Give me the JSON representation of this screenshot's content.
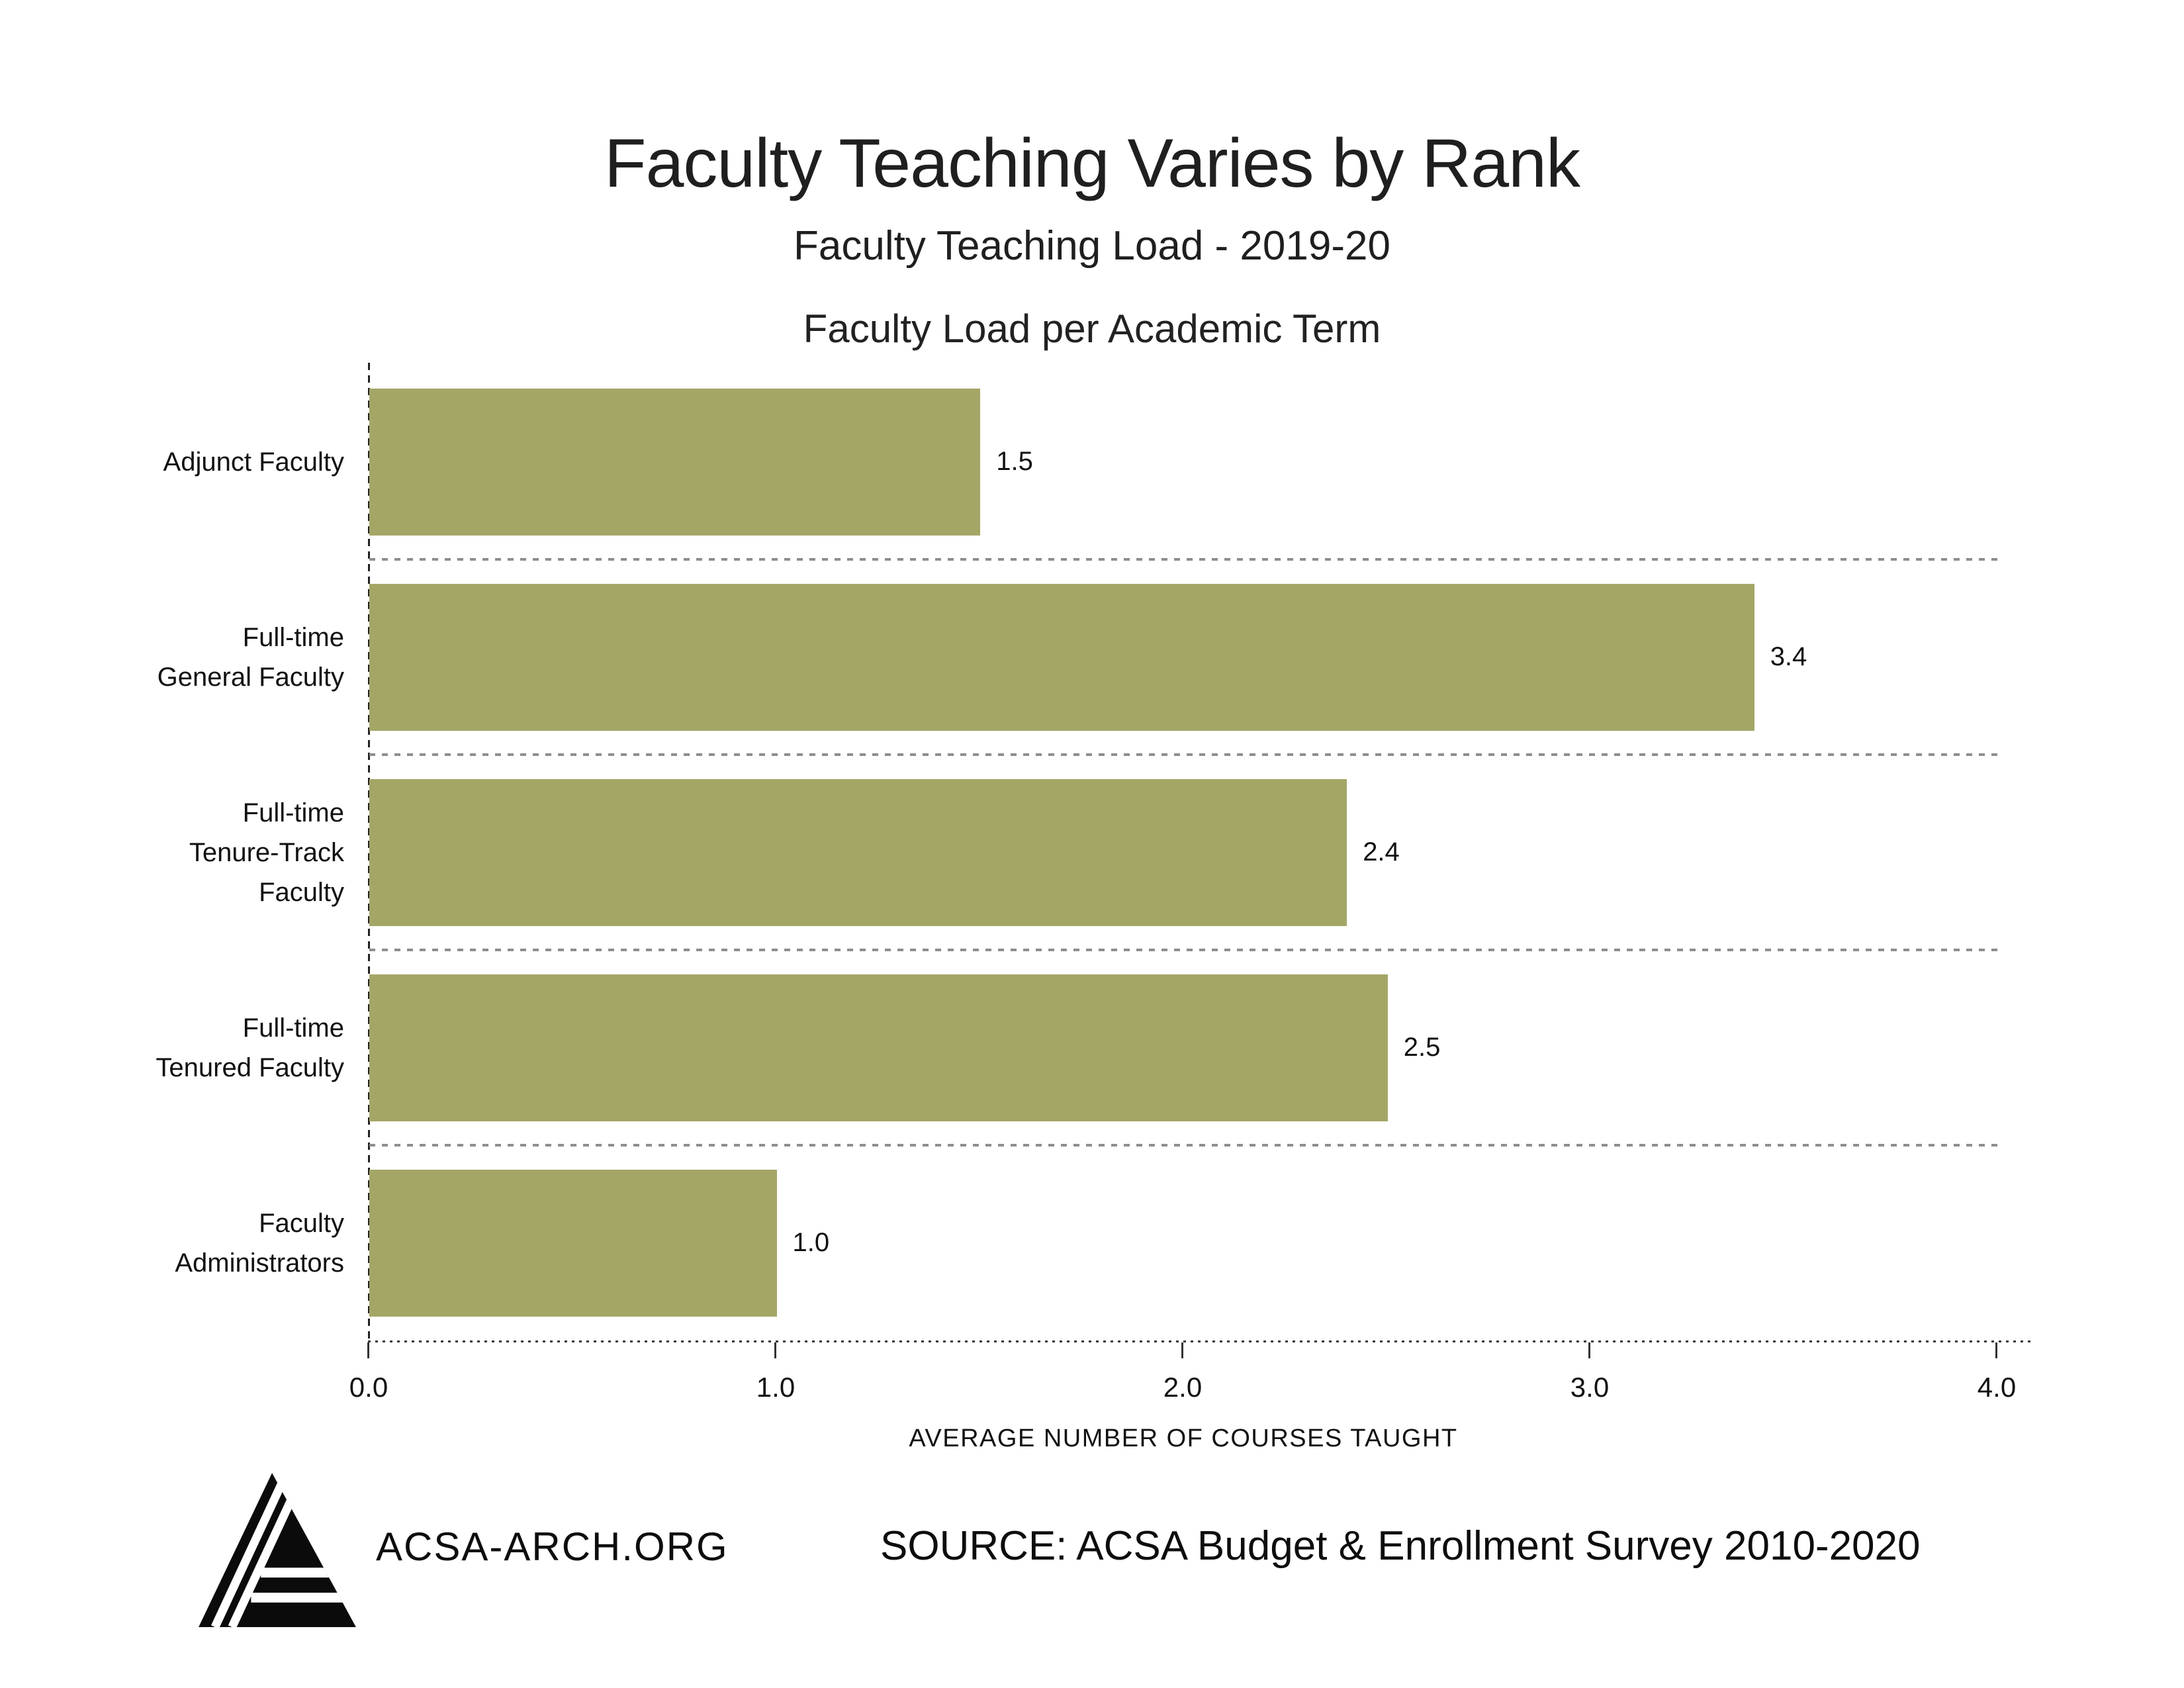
{
  "header": {
    "title": "Faculty Teaching Varies by Rank",
    "subtitle": "Faculty Teaching Load - 2019-20"
  },
  "chart_data": {
    "type": "bar",
    "orientation": "horizontal",
    "title": "Faculty Load per Academic Term",
    "categories": [
      "Adjunct Faculty",
      "Full-time General Faculty",
      "Full-time Tenure-Track Faculty",
      "Full-time Tenured Faculty",
      "Faculty Administrators"
    ],
    "display_categories": [
      "Adjunct Faculty",
      "Full-time\nGeneral Faculty",
      "Full-time\nTenure-Track\nFaculty",
      "Full-time\nTenured Faculty",
      "Faculty\nAdministrators"
    ],
    "values": [
      1.5,
      3.4,
      2.4,
      2.5,
      1.0
    ],
    "value_labels": [
      "1.5",
      "3.4",
      "2.4",
      "2.5",
      "1.0"
    ],
    "xlabel": "AVERAGE NUMBER OF COURSES TAUGHT",
    "ylabel": "",
    "xlim": [
      0.0,
      4.0
    ],
    "tick_labels": [
      "0.0",
      "1.0",
      "2.0",
      "3.0",
      "4.0"
    ],
    "grid": "dashed row separators, dashed zero axis, dotted bottom axis",
    "legend": "none",
    "bar_color": "#a4a666"
  },
  "footer": {
    "logo": "acsa-triangle-logo",
    "site": "ACSA-ARCH.ORG",
    "source": "SOURCE: ACSA Budget & Enrollment Survey 2010-2020"
  }
}
